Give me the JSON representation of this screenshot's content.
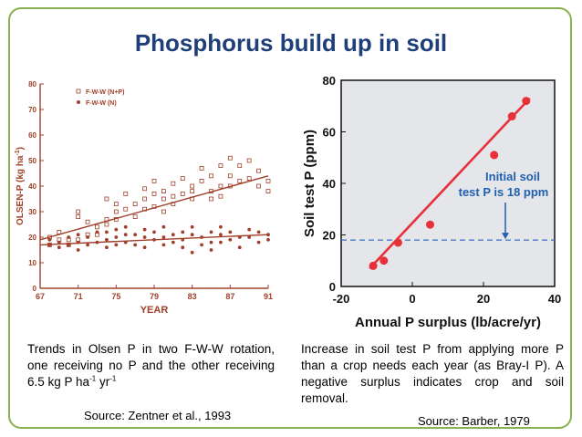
{
  "slide": {
    "title": "Phosphorus build up in soil",
    "colors": {
      "title": "#1f3f7a",
      "frame": "#8ab050",
      "chart_a": "#a0402a",
      "chart_b_line": "#e8303a",
      "chart_b_ref": "#3a6fc0",
      "annotation": "#2060b0"
    }
  },
  "left_caption": {
    "text1": "Trends in Olsen P in two F-W-W rotation, one receiving no P and the other receiving 6.5 kg P ha",
    "sup1": "-1",
    "mid": " yr",
    "sup2": "-1",
    "source": "Source: Zentner et al., 1993"
  },
  "right_caption": {
    "text": "Increase in soil test P from applying more P than a crop needs each year (as Bray-I P). A negative surplus indicates crop and soil removal.",
    "source": "Source: Barber, 1979"
  },
  "chart_data": [
    {
      "type": "scatter",
      "xlabel": "YEAR",
      "ylabel": "OLSEN-P (kg ha",
      "ylabel_sup": "-1",
      "ylabel_end": ")",
      "xlim": [
        67,
        91
      ],
      "ylim": [
        0,
        80
      ],
      "xticks": [
        67,
        71,
        75,
        79,
        83,
        87,
        91
      ],
      "xtick_labels": [
        "67",
        "71",
        "75",
        "79",
        "83",
        "87",
        "91"
      ],
      "yticks": [
        0,
        10,
        20,
        30,
        40,
        50,
        60,
        70,
        80
      ],
      "ytick_labels": [
        "0",
        "10",
        "20",
        "30",
        "40",
        "50",
        "60",
        "70",
        "80"
      ],
      "legend_position": "top-left",
      "series": [
        {
          "name": "F-W-W (N+P)",
          "marker": "open-square",
          "points": [
            [
              68,
              20
            ],
            [
              68,
              17
            ],
            [
              69,
              19
            ],
            [
              69,
              22
            ],
            [
              70,
              19
            ],
            [
              70,
              17
            ],
            [
              71,
              30
            ],
            [
              71,
              28
            ],
            [
              71,
              19
            ],
            [
              72,
              26
            ],
            [
              72,
              21
            ],
            [
              73,
              24
            ],
            [
              73,
              21
            ],
            [
              74,
              35
            ],
            [
              74,
              27
            ],
            [
              74,
              25
            ],
            [
              75,
              30
            ],
            [
              75,
              27
            ],
            [
              75,
              33
            ],
            [
              76,
              31
            ],
            [
              76,
              37
            ],
            [
              77,
              28
            ],
            [
              77,
              33
            ],
            [
              78,
              39
            ],
            [
              78,
              35
            ],
            [
              78,
              31
            ],
            [
              79,
              42
            ],
            [
              79,
              37
            ],
            [
              79,
              32
            ],
            [
              80,
              35
            ],
            [
              80,
              38
            ],
            [
              80,
              30
            ],
            [
              81,
              41
            ],
            [
              81,
              36
            ],
            [
              81,
              33
            ],
            [
              82,
              37
            ],
            [
              82,
              43
            ],
            [
              83,
              40
            ],
            [
              83,
              38
            ],
            [
              83,
              35
            ],
            [
              84,
              47
            ],
            [
              84,
              42
            ],
            [
              85,
              38
            ],
            [
              85,
              44
            ],
            [
              85,
              35
            ],
            [
              86,
              48
            ],
            [
              86,
              40
            ],
            [
              86,
              36
            ],
            [
              87,
              51
            ],
            [
              87,
              44
            ],
            [
              87,
              40
            ],
            [
              88,
              42
            ],
            [
              88,
              48
            ],
            [
              89,
              50
            ],
            [
              89,
              43
            ],
            [
              90,
              40
            ],
            [
              90,
              46
            ],
            [
              91,
              42
            ],
            [
              91,
              38
            ]
          ],
          "trend": [
            [
              67,
              19
            ],
            [
              91,
              44
            ]
          ]
        },
        {
          "name": "F-W-W (N)",
          "marker": "filled-circle",
          "points": [
            [
              68,
              19
            ],
            [
              68,
              17
            ],
            [
              69,
              18
            ],
            [
              69,
              16
            ],
            [
              70,
              20
            ],
            [
              70,
              17
            ],
            [
              71,
              21
            ],
            [
              71,
              18
            ],
            [
              71,
              15
            ],
            [
              72,
              20
            ],
            [
              72,
              17
            ],
            [
              73,
              22
            ],
            [
              73,
              18
            ],
            [
              74,
              22
            ],
            [
              74,
              19
            ],
            [
              74,
              16
            ],
            [
              75,
              23
            ],
            [
              75,
              20
            ],
            [
              75,
              17
            ],
            [
              76,
              24
            ],
            [
              76,
              21
            ],
            [
              76,
              18
            ],
            [
              77,
              21
            ],
            [
              77,
              17
            ],
            [
              78,
              23
            ],
            [
              78,
              20
            ],
            [
              78,
              16
            ],
            [
              79,
              22
            ],
            [
              79,
              19
            ],
            [
              80,
              24
            ],
            [
              80,
              20
            ],
            [
              80,
              17
            ],
            [
              81,
              21
            ],
            [
              81,
              18
            ],
            [
              82,
              22
            ],
            [
              82,
              19
            ],
            [
              82,
              16
            ],
            [
              83,
              24
            ],
            [
              83,
              21
            ],
            [
              83,
              14
            ],
            [
              84,
              20
            ],
            [
              84,
              17
            ],
            [
              85,
              22
            ],
            [
              85,
              18
            ],
            [
              85,
              15
            ],
            [
              86,
              24
            ],
            [
              86,
              21
            ],
            [
              86,
              18
            ],
            [
              87,
              22
            ],
            [
              87,
              19
            ],
            [
              88,
              20
            ],
            [
              88,
              16
            ],
            [
              89,
              23
            ],
            [
              89,
              20
            ],
            [
              90,
              22
            ],
            [
              90,
              18
            ],
            [
              91,
              21
            ],
            [
              91,
              19
            ]
          ],
          "trend": [
            [
              67,
              17
            ],
            [
              91,
              21
            ]
          ]
        }
      ]
    },
    {
      "type": "scatter",
      "xlabel": "Annual P surplus (lb/acre/yr)",
      "ylabel": "Soil test P (ppm)",
      "xlim": [
        -20,
        40
      ],
      "ylim": [
        0,
        80
      ],
      "xticks": [
        -20,
        0,
        20,
        40
      ],
      "xtick_labels": [
        "-20",
        "0",
        "20",
        "40"
      ],
      "yticks": [
        0,
        20,
        40,
        60,
        80
      ],
      "ytick_labels": [
        "0",
        "20",
        "40",
        "60",
        "80"
      ],
      "series": [
        {
          "name": "",
          "marker": "filled-circle",
          "points": [
            [
              -11,
              8
            ],
            [
              -8,
              10
            ],
            [
              -4,
              17
            ],
            [
              5,
              24
            ],
            [
              23,
              51
            ],
            [
              28,
              66
            ],
            [
              32,
              72
            ]
          ],
          "trend": [
            [
              -12,
              7
            ],
            [
              33,
              73
            ]
          ]
        }
      ],
      "reference_line": {
        "y": 18
      },
      "annotation": {
        "line1": "Initial soil",
        "line2": "test P is 18 ppm"
      }
    }
  ]
}
